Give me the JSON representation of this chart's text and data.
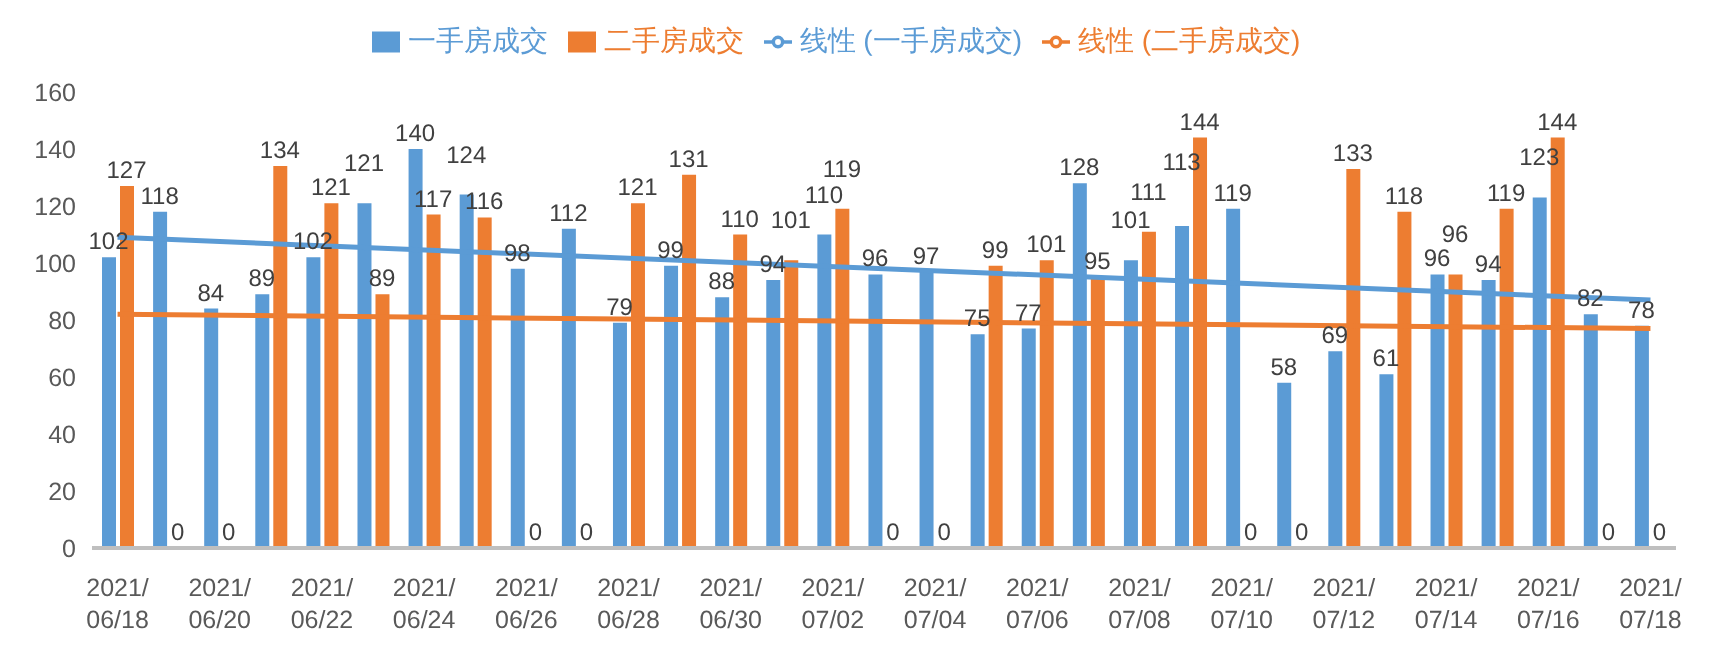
{
  "chart_data": {
    "type": "bar",
    "categories": [
      "2021/06/18",
      null,
      "2021/06/20",
      null,
      "2021/06/22",
      null,
      "2021/06/24",
      null,
      "2021/06/26",
      null,
      "2021/06/28",
      null,
      "2021/06/30",
      null,
      "2021/07/02",
      null,
      "2021/07/04",
      null,
      "2021/07/06",
      null,
      "2021/07/08",
      null,
      "2021/07/10",
      null,
      "2021/07/12",
      null,
      "2021/07/14",
      null,
      "2021/07/16",
      null,
      "2021/07/18"
    ],
    "series": [
      {
        "name": "一手房成交",
        "color": "#5b9bd5",
        "values": [
          102,
          118,
          84,
          89,
          102,
          121,
          140,
          124,
          98,
          112,
          79,
          99,
          88,
          94,
          110,
          96,
          97,
          75,
          77,
          128,
          101,
          113,
          119,
          58,
          69,
          61,
          96,
          94,
          123,
          82,
          78
        ],
        "value_labels": [
          "102",
          "118",
          "84",
          "89",
          "102",
          "121",
          "140",
          "124",
          "98",
          "112",
          "79",
          "99",
          "88",
          "94",
          "110",
          "96",
          "97",
          "75",
          "77",
          "128",
          "101",
          "113",
          "119",
          "58",
          "69",
          "61",
          "96",
          "94",
          "123",
          "82",
          "78"
        ]
      },
      {
        "name": "二手房成交",
        "color": "#ed7d31",
        "values": [
          127,
          0,
          0,
          134,
          121,
          89,
          117,
          116,
          0,
          0,
          121,
          131,
          110,
          101,
          119,
          0,
          0,
          99,
          101,
          95,
          111,
          144,
          0,
          0,
          133,
          118,
          96,
          119,
          144,
          0,
          0
        ],
        "value_labels": [
          "127",
          "0",
          "0",
          "134",
          "121",
          "89",
          "117",
          "116",
          "0",
          "0",
          "121",
          "131",
          "110",
          "101",
          "119",
          "0",
          "0",
          "99",
          "101",
          "95",
          "111",
          "144",
          "0",
          "0",
          "133",
          "118",
          "96",
          "119",
          "144",
          "0",
          "0"
        ]
      },
      {
        "name": "线性 (一手房成交)",
        "type": "line",
        "color": "#5b9bd5",
        "x": [
          "2021/06/18",
          "2021/07/18"
        ],
        "values": [
          109,
          87
        ]
      },
      {
        "name": "线性 (二手房成交)",
        "type": "line",
        "color": "#ed7d31",
        "x": [
          "2021/06/18",
          "2021/07/18"
        ],
        "values": [
          82,
          77
        ]
      }
    ],
    "ylim": [
      0,
      160
    ],
    "yticks": [
      0,
      20,
      40,
      60,
      80,
      100,
      120,
      140,
      160
    ],
    "grid": false,
    "legend": "top",
    "marker": "none",
    "line_style": "solid"
  }
}
